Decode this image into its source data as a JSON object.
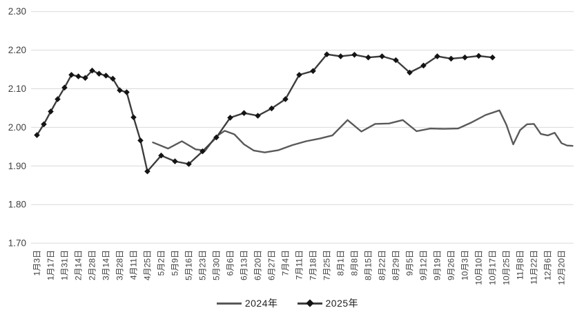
{
  "chart_data": {
    "type": "line",
    "title": "",
    "xlabel": "",
    "ylabel": "",
    "ylim": [
      1.7,
      2.3
    ],
    "yticks": [
      2.3,
      2.2,
      2.1,
      2.0,
      1.9,
      1.8,
      1.7
    ],
    "ytick_format_decimals": 2,
    "grid": "horizontal",
    "legend_position": "bottom-center",
    "x_tick_labels": [
      "1月3日",
      "1月17日",
      "1月31日",
      "2月14日",
      "2月28日",
      "3月14日",
      "3月28日",
      "4月11日",
      "4月25日",
      "5月2日",
      "5月9日",
      "5月16日",
      "5月23日",
      "5月30日",
      "6月6日",
      "6月13日",
      "6月20日",
      "6月27日",
      "7月4日",
      "7月11日",
      "7月18日",
      "7月25日",
      "8月1日",
      "8月8日",
      "8月15日",
      "8月22日",
      "8月29日",
      "9月5日",
      "9月12日",
      "9月19日",
      "9月26日",
      "10月3日",
      "10月10日",
      "10月17日",
      "10月25日",
      "11月8日",
      "11月22日",
      "12月6日",
      "12月20日"
    ],
    "series": [
      {
        "name": "2024年",
        "color": "#595959",
        "marker": "none",
        "line_width": 2.4,
        "points": [
          [
            8.4,
            1.961
          ],
          [
            9.5,
            1.945
          ],
          [
            10.5,
            1.964
          ],
          [
            11.5,
            1.943
          ],
          [
            12.2,
            1.94
          ],
          [
            12.9,
            1.974
          ],
          [
            13.6,
            1.991
          ],
          [
            14.3,
            1.982
          ],
          [
            15.0,
            1.956
          ],
          [
            15.7,
            1.94
          ],
          [
            16.5,
            1.935
          ],
          [
            17.5,
            1.941
          ],
          [
            18.5,
            1.954
          ],
          [
            19.5,
            1.964
          ],
          [
            20.5,
            1.971
          ],
          [
            21.4,
            1.979
          ],
          [
            22.5,
            2.019
          ],
          [
            23.5,
            1.989
          ],
          [
            24.5,
            2.009
          ],
          [
            25.5,
            2.01
          ],
          [
            26.5,
            2.019
          ],
          [
            27.5,
            1.99
          ],
          [
            28.5,
            1.997
          ],
          [
            29.5,
            1.996
          ],
          [
            30.5,
            1.997
          ],
          [
            31.5,
            2.013
          ],
          [
            32.5,
            2.032
          ],
          [
            33.5,
            2.044
          ],
          [
            34.0,
            2.007
          ],
          [
            34.5,
            1.956
          ],
          [
            35.0,
            1.993
          ],
          [
            35.5,
            2.008
          ],
          [
            36.0,
            2.009
          ],
          [
            36.5,
            1.983
          ],
          [
            37.0,
            1.979
          ],
          [
            37.5,
            1.986
          ],
          [
            38.0,
            1.959
          ],
          [
            38.4,
            1.953
          ],
          [
            38.8,
            1.952
          ]
        ]
      },
      {
        "name": "2025年",
        "color": "#3d3d3d",
        "marker": "diamond",
        "marker_color": "#141414",
        "line_width": 2.4,
        "points": [
          [
            0,
            1.98
          ],
          [
            0.5,
            2.008
          ],
          [
            1,
            2.041
          ],
          [
            1.5,
            2.073
          ],
          [
            2,
            2.103
          ],
          [
            2.5,
            2.136
          ],
          [
            3,
            2.132
          ],
          [
            3.5,
            2.128
          ],
          [
            4,
            2.147
          ],
          [
            4.5,
            2.139
          ],
          [
            5,
            2.134
          ],
          [
            5.5,
            2.126
          ],
          [
            6,
            2.096
          ],
          [
            6.5,
            2.091
          ],
          [
            7,
            2.026
          ],
          [
            7.5,
            1.966
          ],
          [
            8,
            1.886
          ],
          [
            9,
            1.927
          ],
          [
            10,
            1.912
          ],
          [
            11,
            1.905
          ],
          [
            12,
            1.938
          ],
          [
            13,
            1.974
          ],
          [
            14,
            2.025
          ],
          [
            15,
            2.037
          ],
          [
            16,
            2.03
          ],
          [
            17,
            2.049
          ],
          [
            18,
            2.073
          ],
          [
            19,
            2.136
          ],
          [
            20,
            2.146
          ],
          [
            21,
            2.189
          ],
          [
            22,
            2.184
          ],
          [
            23,
            2.188
          ],
          [
            24,
            2.181
          ],
          [
            25,
            2.184
          ],
          [
            26,
            2.174
          ],
          [
            27,
            2.142
          ],
          [
            28,
            2.16
          ],
          [
            29,
            2.184
          ],
          [
            30,
            2.178
          ],
          [
            31,
            2.181
          ],
          [
            32,
            2.185
          ],
          [
            33,
            2.181
          ]
        ]
      }
    ],
    "colors": {
      "gridline": "#d9d9d9",
      "tick_text": "#404040",
      "background": "#ffffff"
    }
  }
}
